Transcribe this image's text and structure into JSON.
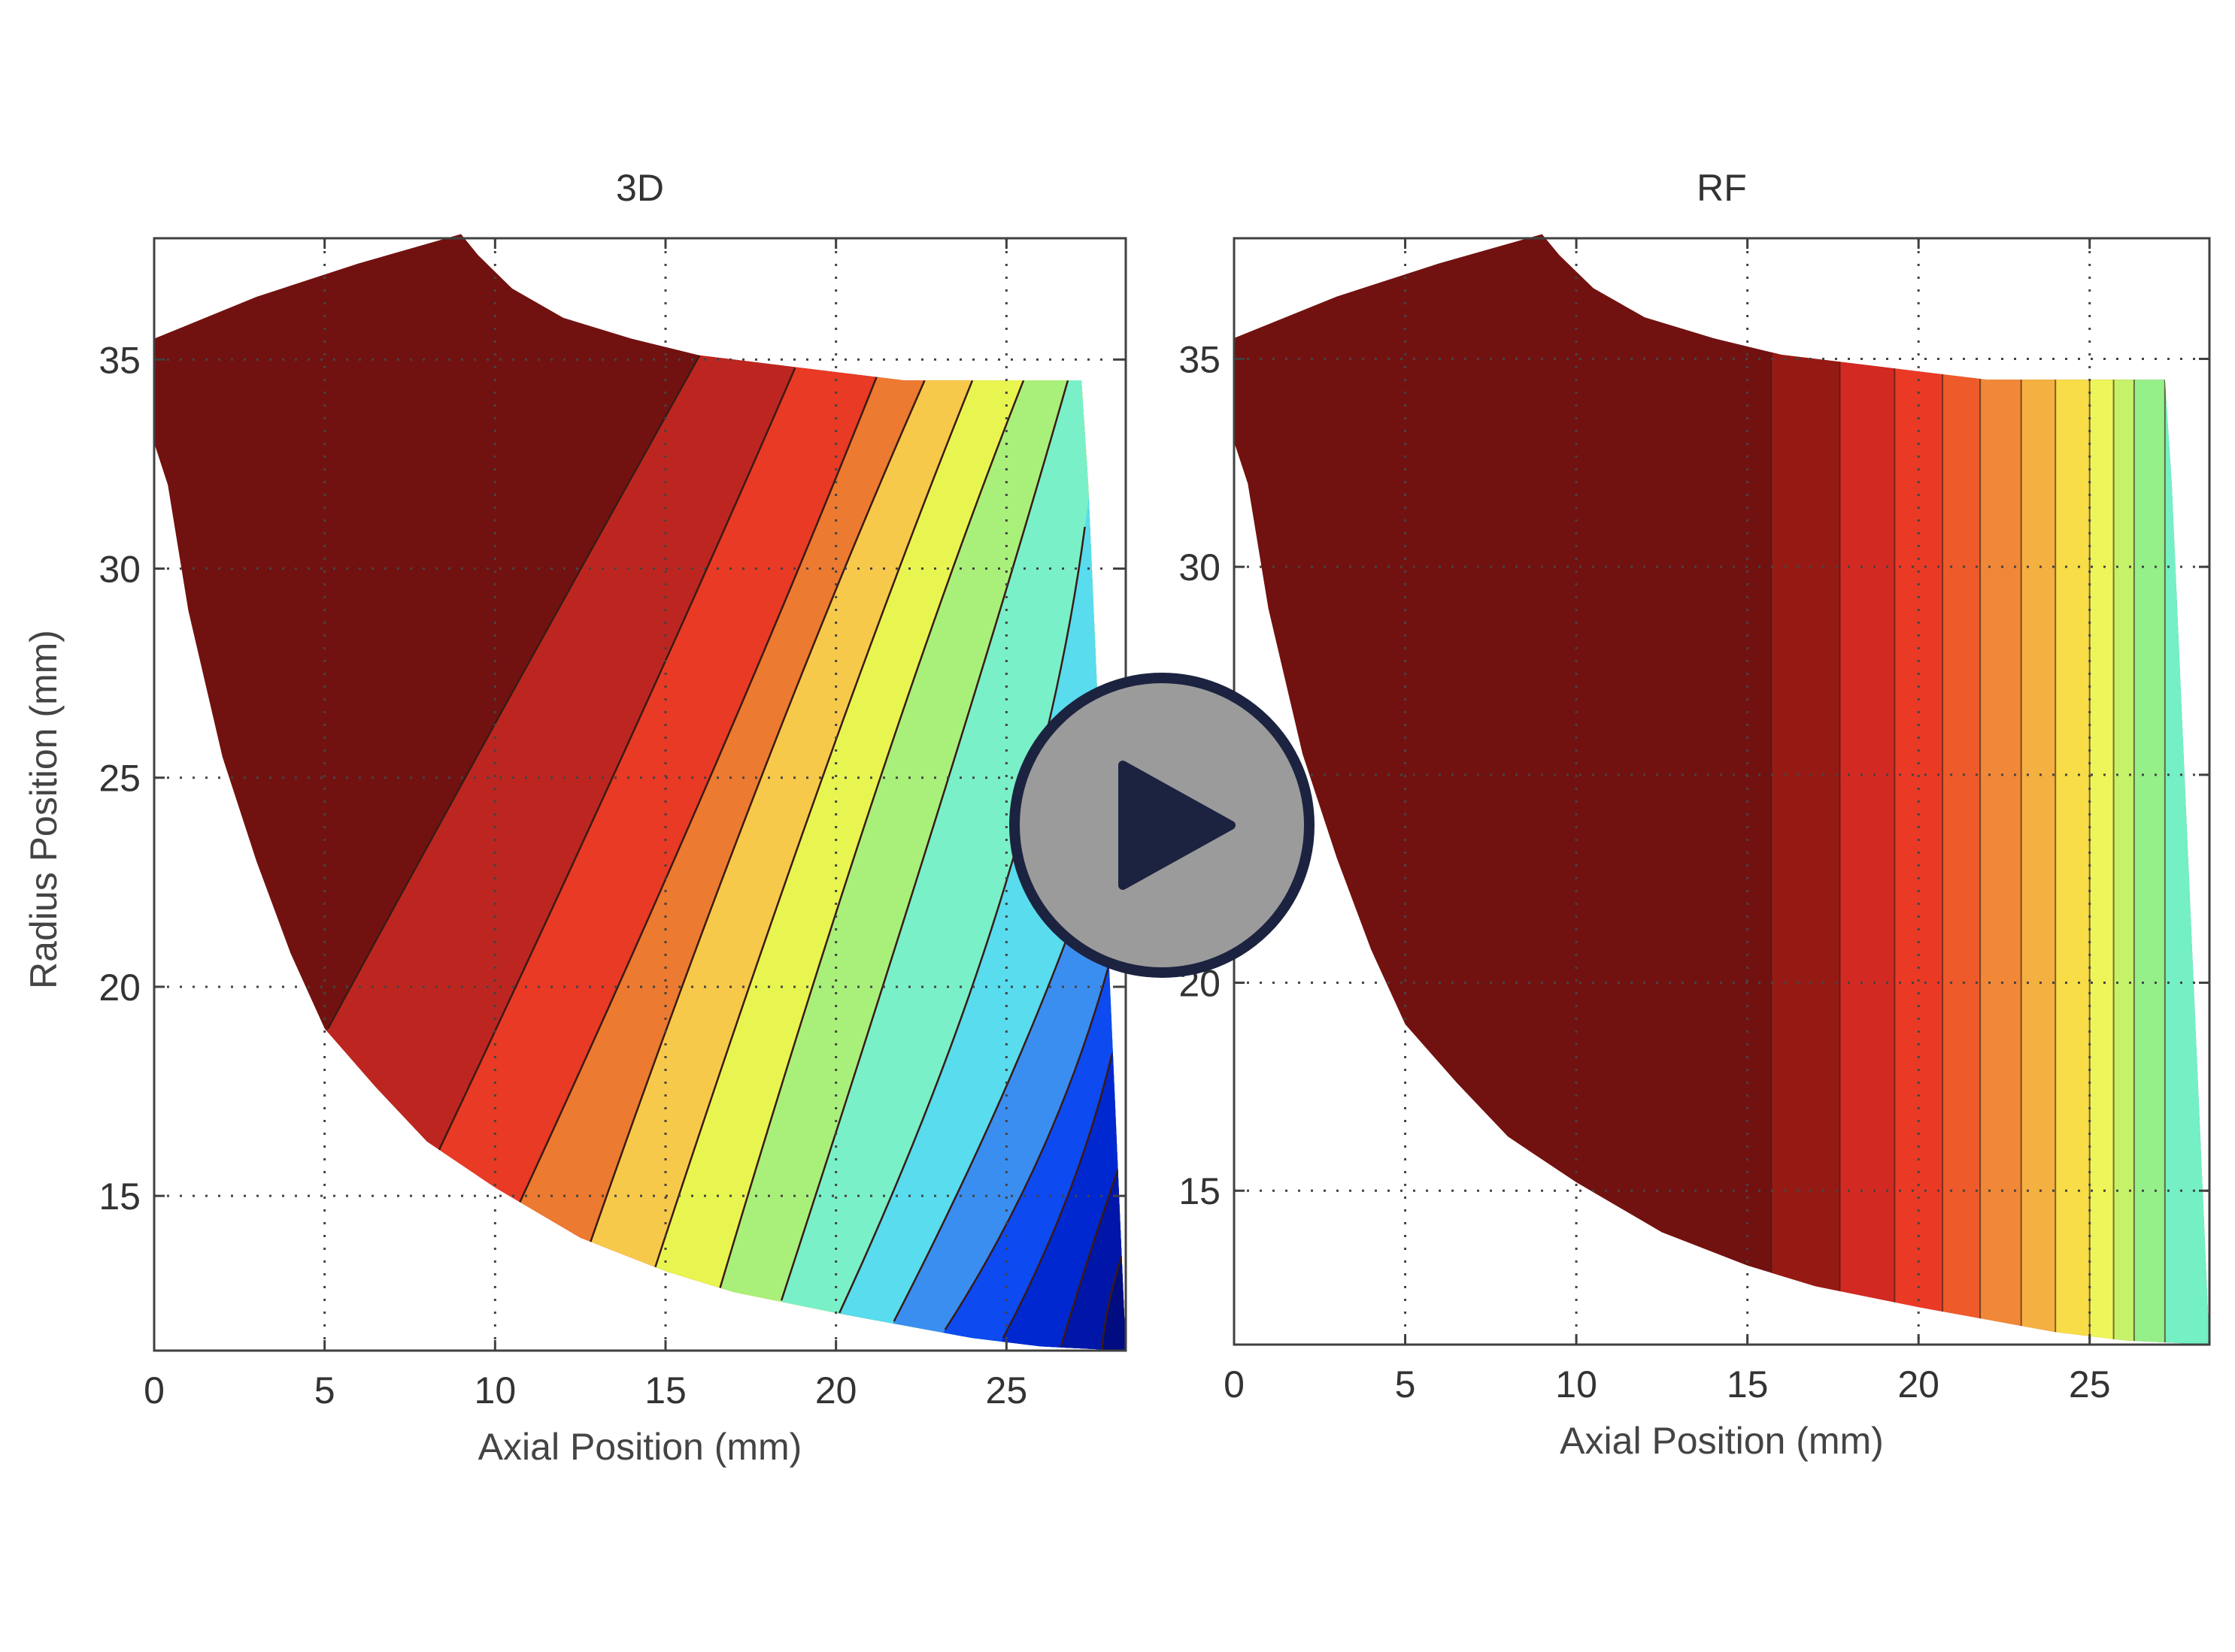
{
  "chart_data": [
    {
      "type": "heatmap",
      "subtype": "filled-contour",
      "title": "3D",
      "xlabel": "Axial Position (mm)",
      "ylabel": "Radius Position (mm)",
      "xlim": [
        0,
        28.5
      ],
      "ylim": [
        11.3,
        37.9
      ],
      "xticks": [
        0,
        5,
        10,
        15,
        20,
        25
      ],
      "yticks": [
        15,
        20,
        25,
        30,
        35
      ],
      "grid": true,
      "domain_boundary": [
        [
          0,
          35.5
        ],
        [
          3,
          36.5
        ],
        [
          6,
          37.3
        ],
        [
          9,
          38
        ],
        [
          9.5,
          37.5
        ],
        [
          10.5,
          36.7
        ],
        [
          12,
          36
        ],
        [
          14,
          35.5
        ],
        [
          16,
          35.1
        ],
        [
          19,
          34.8
        ],
        [
          22,
          34.5
        ],
        [
          27.2,
          34.5
        ],
        [
          27.4,
          32
        ],
        [
          28.5,
          11.3
        ],
        [
          26,
          11.4
        ],
        [
          24,
          11.6
        ],
        [
          22,
          11.9
        ],
        [
          20,
          12.2
        ],
        [
          17,
          12.7
        ],
        [
          15,
          13.2
        ],
        [
          12.5,
          14
        ],
        [
          10,
          15.2
        ],
        [
          8,
          16.3
        ],
        [
          6.5,
          17.6
        ],
        [
          5,
          19
        ],
        [
          4,
          20.8
        ],
        [
          3,
          23
        ],
        [
          2,
          25.5
        ],
        [
          1,
          29
        ],
        [
          0.4,
          32
        ],
        [
          0,
          33
        ]
      ],
      "band_colors": [
        "#721210",
        "#bd2620",
        "#e83a24",
        "#ec7a30",
        "#f7c94a",
        "#e8f550",
        "#a9f07a",
        "#7af0c8",
        "#58dcee",
        "#3a8ef0",
        "#0d4af0",
        "#0028d0",
        "#0016a8",
        "#000c80"
      ],
      "contours": [
        [
          [
            16,
            35.1
          ],
          [
            9.8,
            26
          ],
          [
            5.1,
            19
          ]
        ],
        [
          [
            18.8,
            34.8
          ],
          [
            14,
            26
          ],
          [
            8.3,
            16
          ]
        ],
        [
          [
            21.2,
            34.6
          ],
          [
            16.3,
            25
          ],
          [
            10.7,
            14.8
          ]
        ],
        [
          [
            22.6,
            34.5
          ],
          [
            17.8,
            25
          ],
          [
            12.8,
            13.9
          ]
        ],
        [
          [
            24,
            34.5
          ],
          [
            19.6,
            25
          ],
          [
            14.7,
            13.3
          ]
        ],
        [
          [
            25.5,
            34.5
          ],
          [
            21.3,
            25
          ],
          [
            16.6,
            12.8
          ]
        ],
        [
          [
            26.8,
            34.5
          ],
          [
            23.3,
            25
          ],
          [
            18.4,
            12.5
          ]
        ],
        [
          [
            27.3,
            31
          ],
          [
            24.8,
            22
          ],
          [
            20.1,
            12.2
          ]
        ],
        [
          [
            27.8,
            23.5
          ],
          [
            25.2,
            18
          ],
          [
            21.7,
            12
          ]
        ],
        [
          [
            28,
            20.5
          ],
          [
            26,
            16
          ],
          [
            23.2,
            11.8
          ]
        ],
        [
          [
            28.1,
            18.4
          ],
          [
            26.8,
            15
          ],
          [
            24.9,
            11.6
          ]
        ],
        [
          [
            28.3,
            15.7
          ],
          [
            27.4,
            13.5
          ],
          [
            26.6,
            11.4
          ]
        ],
        [
          [
            28.4,
            13.6
          ],
          [
            28,
            12.4
          ],
          [
            27.8,
            11.3
          ]
        ]
      ]
    },
    {
      "type": "heatmap",
      "subtype": "filled-contour",
      "title": "RF",
      "xlabel": "Axial Position (mm)",
      "ylabel": "",
      "xlim": [
        0,
        28.5
      ],
      "ylim": [
        11.3,
        37.9
      ],
      "xticks": [
        0,
        5,
        10,
        15,
        20,
        25
      ],
      "yticks": [
        15,
        20,
        25,
        30,
        35
      ],
      "grid": true,
      "domain_boundary": [
        [
          0,
          35.5
        ],
        [
          3,
          36.5
        ],
        [
          6,
          37.3
        ],
        [
          9,
          38
        ],
        [
          9.5,
          37.5
        ],
        [
          10.5,
          36.7
        ],
        [
          12,
          36
        ],
        [
          14,
          35.5
        ],
        [
          16,
          35.1
        ],
        [
          19,
          34.8
        ],
        [
          22,
          34.5
        ],
        [
          27.2,
          34.5
        ],
        [
          27.4,
          32
        ],
        [
          28.5,
          11.3
        ],
        [
          26,
          11.4
        ],
        [
          24,
          11.6
        ],
        [
          22,
          11.9
        ],
        [
          20,
          12.2
        ],
        [
          17,
          12.7
        ],
        [
          15,
          13.2
        ],
        [
          12.5,
          14
        ],
        [
          10,
          15.2
        ],
        [
          8,
          16.3
        ],
        [
          6.5,
          17.6
        ],
        [
          5,
          19
        ],
        [
          4,
          20.8
        ],
        [
          3,
          23
        ],
        [
          2,
          25.5
        ],
        [
          1,
          29
        ],
        [
          0.4,
          32
        ],
        [
          0,
          33
        ]
      ],
      "band_edges_x": [
        15.7,
        17.7,
        19.3,
        20.7,
        21.8,
        23.0,
        24.0,
        25.0,
        25.7,
        26.3,
        27.2
      ],
      "band_colors": [
        "#721210",
        "#961a14",
        "#d22a22",
        "#ea3a26",
        "#ee5a2a",
        "#f08838",
        "#f4b040",
        "#f8dc48",
        "#eef55a",
        "#c6f26a",
        "#96f08a",
        "#74f0c4"
      ]
    }
  ],
  "overlay": {
    "icon": "play-icon",
    "fill": "#9b9b9b",
    "border": "#1c2340"
  }
}
